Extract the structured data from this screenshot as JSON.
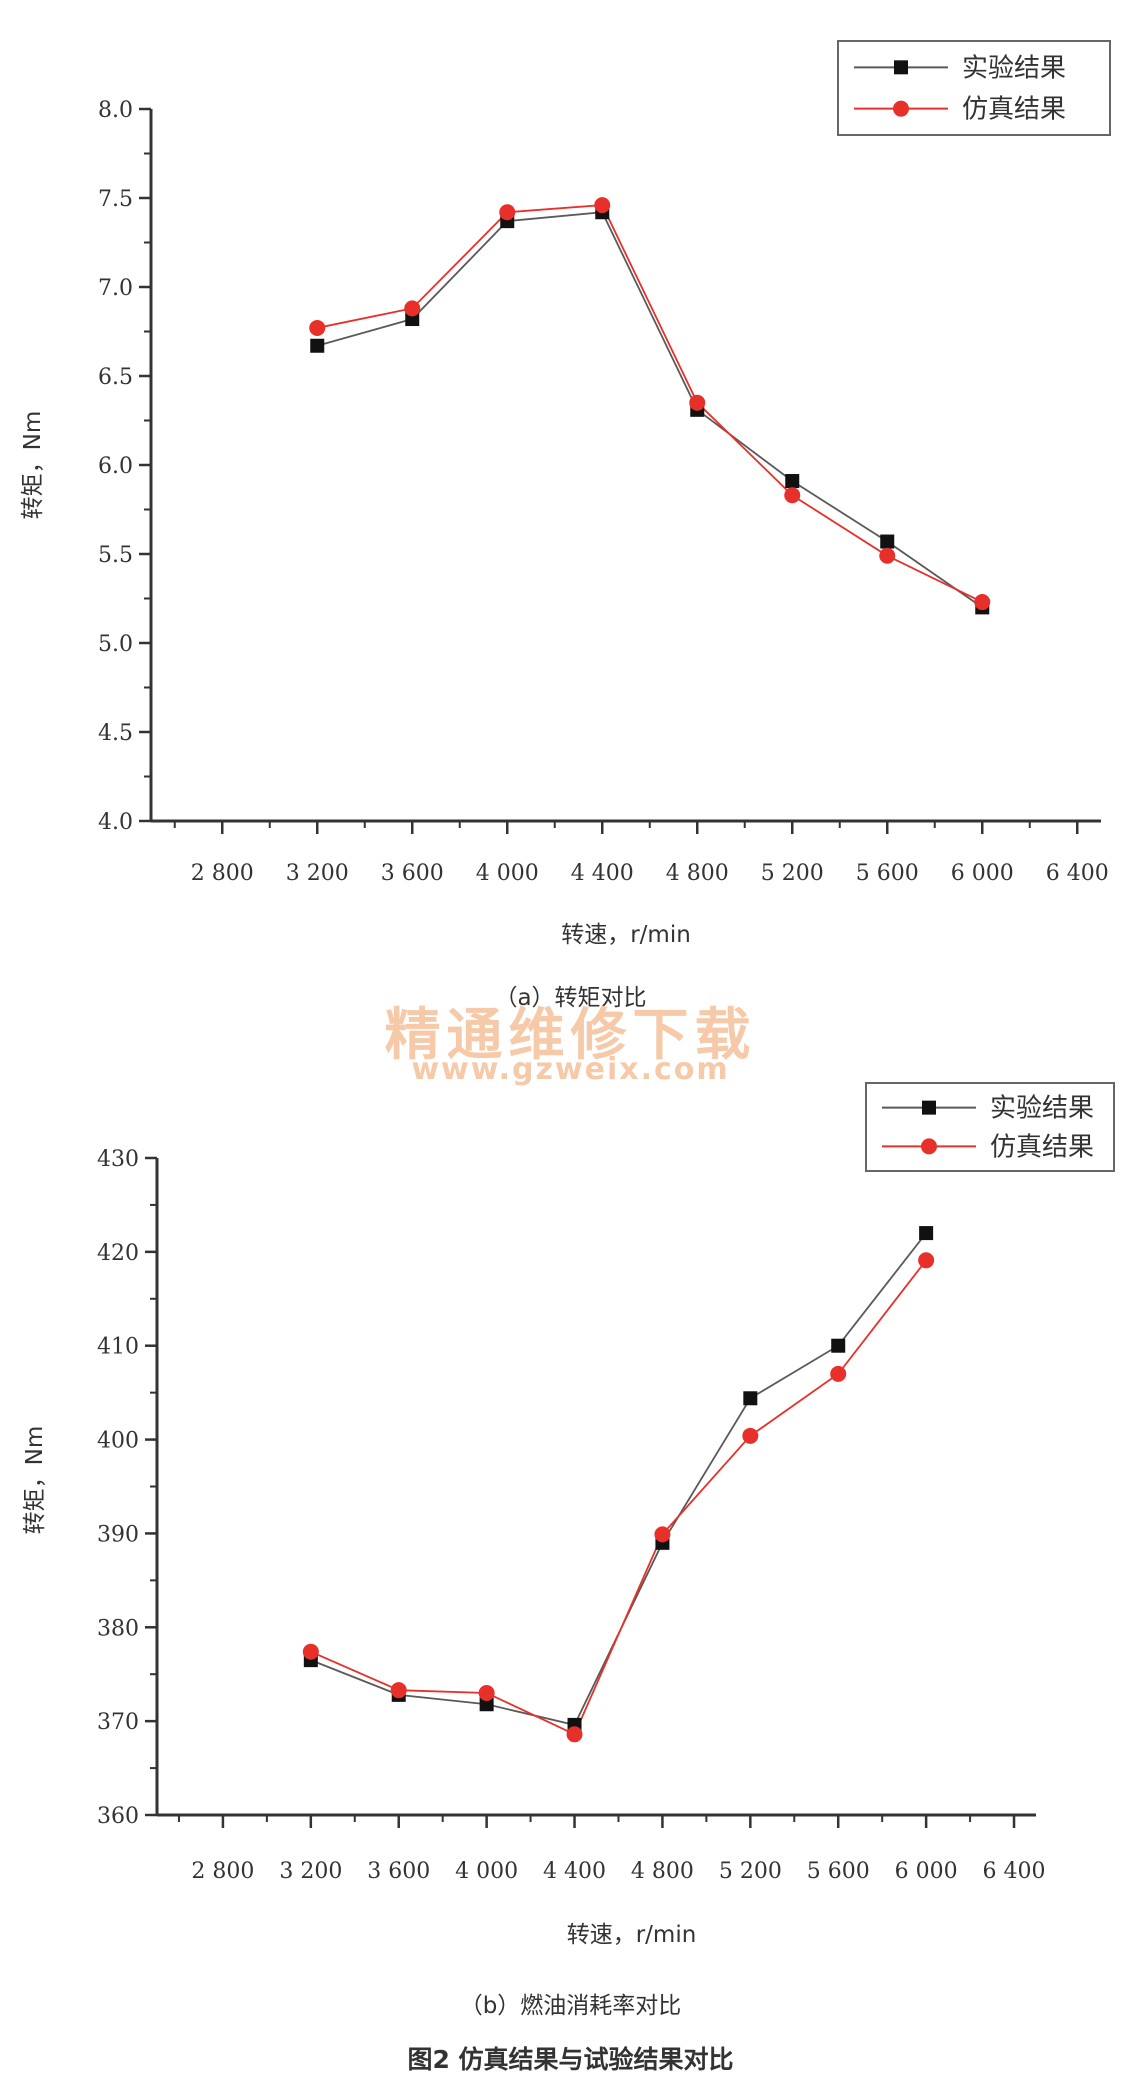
{
  "chart_data": [
    {
      "type": "line",
      "caption": "（a）转矩对比",
      "xlabel": "转速，r/min",
      "ylabel": "转矩，Nm",
      "xlim": [
        2500,
        6500
      ],
      "ylim": [
        4.0,
        8.0
      ],
      "xticks": [
        2800,
        3200,
        3600,
        4000,
        4400,
        4800,
        5200,
        5600,
        6000,
        6400
      ],
      "xtick_labels": [
        "2 800",
        "3 200",
        "3 600",
        "4 000",
        "4 400",
        "4 800",
        "5 200",
        "5 600",
        "6 000",
        "6 400"
      ],
      "yticks": [
        4.0,
        4.5,
        5.0,
        5.5,
        6.0,
        6.5,
        7.0,
        7.5,
        8.0
      ],
      "ytick_labels": [
        "4.0",
        "4.5",
        "5.0",
        "5.5",
        "6.0",
        "6.5",
        "7.0",
        "7.5",
        "8.0"
      ],
      "legend_position": "top-right",
      "x": [
        3200,
        3600,
        4000,
        4400,
        4800,
        5200,
        5600,
        6000
      ],
      "series": [
        {
          "name": "实验结果",
          "marker": "square",
          "color": "#111111",
          "line_color": "#5a5a5a",
          "values": [
            6.67,
            6.82,
            7.37,
            7.42,
            6.31,
            5.91,
            5.57,
            5.2
          ]
        },
        {
          "name": "仿真结果",
          "marker": "circle",
          "color": "#e8302a",
          "line_color": "#e8302a",
          "values": [
            6.77,
            6.88,
            7.42,
            7.46,
            6.35,
            5.83,
            5.49,
            5.23
          ]
        }
      ]
    },
    {
      "type": "line",
      "caption": "（b）燃油消耗率对比",
      "xlabel": "转速，r/min",
      "ylabel": "转矩，Nm",
      "xlim": [
        2500,
        6500
      ],
      "ylim": [
        360,
        430
      ],
      "xticks": [
        2800,
        3200,
        3600,
        4000,
        4400,
        4800,
        5200,
        5600,
        6000,
        6400
      ],
      "xtick_labels": [
        "2 800",
        "3 200",
        "3 600",
        "4 000",
        "4 400",
        "4 800",
        "5 200",
        "5 600",
        "6 000",
        "6 400"
      ],
      "yticks": [
        360,
        370,
        380,
        390,
        400,
        410,
        420,
        430
      ],
      "ytick_labels": [
        "360",
        "370",
        "380",
        "390",
        "400",
        "410",
        "420",
        "430"
      ],
      "legend_position": "top-right",
      "x": [
        3200,
        3600,
        4000,
        4400,
        4800,
        5200,
        5600,
        6000
      ],
      "series": [
        {
          "name": "实验结果",
          "marker": "square",
          "color": "#111111",
          "line_color": "#5a5a5a",
          "values": [
            376.5,
            372.8,
            371.8,
            369.6,
            389.0,
            404.4,
            410.0,
            422.0
          ]
        },
        {
          "name": "仿真结果",
          "marker": "circle",
          "color": "#e8302a",
          "line_color": "#e8302a",
          "values": [
            377.4,
            373.3,
            373.0,
            368.6,
            389.9,
            400.4,
            407.0,
            419.1
          ]
        }
      ]
    }
  ],
  "figure_caption": "图2   仿真结果与试验结果对比",
  "watermark": {
    "text": "精通维修下载",
    "url": "www.gzweix.com",
    "color": "#f6c9a8"
  }
}
